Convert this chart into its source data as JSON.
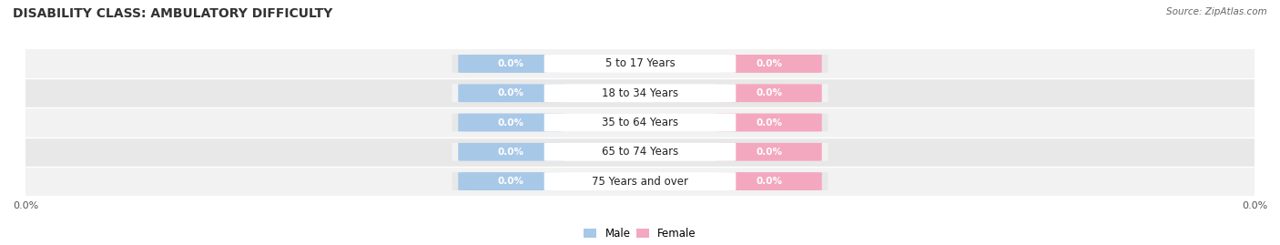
{
  "title": "DISABILITY CLASS: AMBULATORY DIFFICULTY",
  "source_text": "Source: ZipAtlas.com",
  "categories": [
    "5 to 17 Years",
    "18 to 34 Years",
    "35 to 64 Years",
    "65 to 74 Years",
    "75 Years and over"
  ],
  "male_values": [
    0.0,
    0.0,
    0.0,
    0.0,
    0.0
  ],
  "female_values": [
    0.0,
    0.0,
    0.0,
    0.0,
    0.0
  ],
  "male_color": "#a8c8e8",
  "female_color": "#f4a8c0",
  "row_bg_colors": [
    "#f2f2f2",
    "#e8e8e8"
  ],
  "center_label_bg": "#ffffff",
  "title_fontsize": 10,
  "value_fontsize": 7.5,
  "cat_fontsize": 8.5,
  "tick_fontsize": 8,
  "x_left_label": "0.0%",
  "x_right_label": "0.0%",
  "legend_male": "Male",
  "legend_female": "Female",
  "background_color": "#ffffff"
}
